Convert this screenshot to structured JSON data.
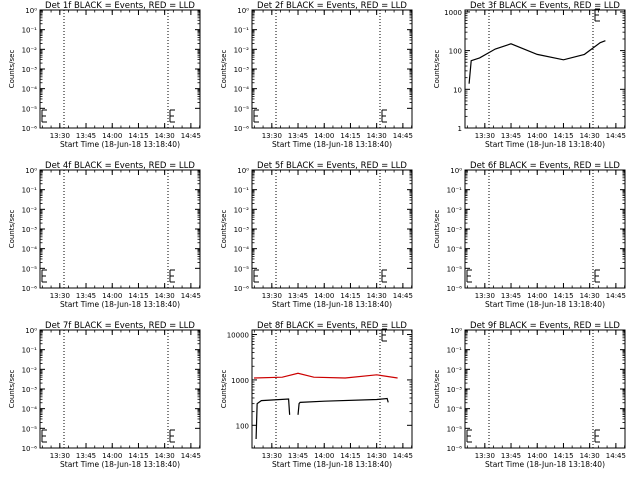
{
  "chart_data": [
    {
      "type": "line",
      "title": "Det 1f BLACK = Events, RED = LLD",
      "xlabel": "Start Time (18-Jun-18 13:18:40)",
      "ylabel": "Counts/sec",
      "yscale": "log",
      "yticks": [
        "10⁰",
        "10⁻¹",
        "10⁻²",
        "10⁻³",
        "10⁻⁴",
        "10⁻⁵",
        "10⁻⁶"
      ],
      "xticks": [
        "13:30",
        "13:45",
        "14:00",
        "14:15",
        "14:30",
        "14:45"
      ],
      "series": []
    },
    {
      "type": "line",
      "title": "Det 2f BLACK = Events, RED = LLD",
      "xlabel": "Start Time (18-Jun-18 13:18:40)",
      "ylabel": "Counts/sec",
      "yscale": "log",
      "yticks": [
        "10⁰",
        "10⁻¹",
        "10⁻²",
        "10⁻³",
        "10⁻⁴",
        "10⁻⁵",
        "10⁻⁶"
      ],
      "xticks": [
        "13:30",
        "13:45",
        "14:00",
        "14:15",
        "14:30",
        "14:45"
      ],
      "series": []
    },
    {
      "type": "line",
      "title": "Det 3f BLACK = Events, RED = LLD",
      "xlabel": "Start Time (18-Jun-18 13:18:40)",
      "ylabel": "Counts/sec",
      "yscale": "log",
      "yticks": [
        "1",
        "10",
        "100",
        "1000"
      ],
      "xticks": [
        "13:30",
        "13:45",
        "14:00",
        "14:15",
        "14:30",
        "14:45"
      ],
      "series": [
        {
          "color": "#000000",
          "x": [
            13.35,
            13.37,
            13.45,
            13.6,
            13.75,
            14.0,
            14.25,
            14.45,
            14.6,
            14.65
          ],
          "y": [
            14,
            55,
            65,
            110,
            150,
            80,
            58,
            80,
            160,
            180
          ]
        }
      ]
    },
    {
      "type": "line",
      "title": "Det 4f BLACK = Events, RED = LLD",
      "xlabel": "Start Time (18-Jun-18 13:18:40)",
      "ylabel": "Counts/sec",
      "yscale": "log",
      "yticks": [
        "10⁰",
        "10⁻¹",
        "10⁻²",
        "10⁻³",
        "10⁻⁴",
        "10⁻⁵",
        "10⁻⁶"
      ],
      "xticks": [
        "13:30",
        "13:45",
        "14:00",
        "14:15",
        "14:30",
        "14:45"
      ],
      "series": []
    },
    {
      "type": "line",
      "title": "Det 5f BLACK = Events, RED = LLD",
      "xlabel": "Start Time (18-Jun-18 13:18:40)",
      "ylabel": "Counts/sec",
      "yscale": "log",
      "yticks": [
        "10⁰",
        "10⁻¹",
        "10⁻²",
        "10⁻³",
        "10⁻⁴",
        "10⁻⁵",
        "10⁻⁶"
      ],
      "xticks": [
        "13:30",
        "13:45",
        "14:00",
        "14:15",
        "14:30",
        "14:45"
      ],
      "series": []
    },
    {
      "type": "line",
      "title": "Det 6f BLACK = Events, RED = LLD",
      "xlabel": "Start Time (18-Jun-18 13:18:40)",
      "ylabel": "Counts/sec",
      "yscale": "log",
      "yticks": [
        "10⁰",
        "10⁻¹",
        "10⁻²",
        "10⁻³",
        "10⁻⁴",
        "10⁻⁵",
        "10⁻⁶"
      ],
      "xticks": [
        "13:30",
        "13:45",
        "14:00",
        "14:15",
        "14:30",
        "14:45"
      ],
      "series": []
    },
    {
      "type": "line",
      "title": "Det 7f BLACK = Events, RED = LLD",
      "xlabel": "Start Time (18-Jun-18 13:18:40)",
      "ylabel": "Counts/sec",
      "yscale": "log",
      "yticks": [
        "10⁰",
        "10⁻¹",
        "10⁻²",
        "10⁻³",
        "10⁻⁴",
        "10⁻⁵",
        "10⁻⁶"
      ],
      "xticks": [
        "13:30",
        "13:45",
        "14:00",
        "14:15",
        "14:30",
        "14:45"
      ],
      "series": []
    },
    {
      "type": "line",
      "title": "Det 8f BLACK = Events, RED = LLD",
      "xlabel": "Start Time (18-Jun-18 13:18:40)",
      "ylabel": "Counts/sec",
      "yscale": "log",
      "yticks": [
        "100",
        "1000",
        "10000"
      ],
      "xticks": [
        "13:30",
        "13:45",
        "14:00",
        "14:15",
        "14:30",
        "14:45"
      ],
      "series": [
        {
          "color": "#cc0000",
          "x": [
            13.33,
            13.6,
            13.75,
            13.9,
            14.2,
            14.5,
            14.7
          ],
          "y": [
            1100,
            1150,
            1400,
            1150,
            1100,
            1300,
            1100
          ]
        },
        {
          "color": "#000000",
          "x": [
            13.35,
            13.36,
            13.4,
            13.66,
            13.67,
            13.75,
            13.76,
            13.77,
            14.0,
            14.5,
            14.6,
            14.61
          ],
          "y": [
            50,
            300,
            350,
            380,
            170,
            170,
            300,
            320,
            340,
            370,
            390,
            320
          ]
        }
      ]
    },
    {
      "type": "line",
      "title": "Det 9f BLACK = Events, RED = LLD",
      "xlabel": "Start Time (18-Jun-18 13:18:40)",
      "ylabel": "Counts/sec",
      "yscale": "log",
      "yticks": [
        "10⁰",
        "10⁻¹",
        "10⁻²",
        "10⁻³",
        "10⁻⁴",
        "10⁻⁵",
        "10⁻⁶"
      ],
      "xticks": [
        "13:30",
        "13:45",
        "14:00",
        "14:15",
        "14:30",
        "14:45"
      ],
      "series": []
    }
  ]
}
